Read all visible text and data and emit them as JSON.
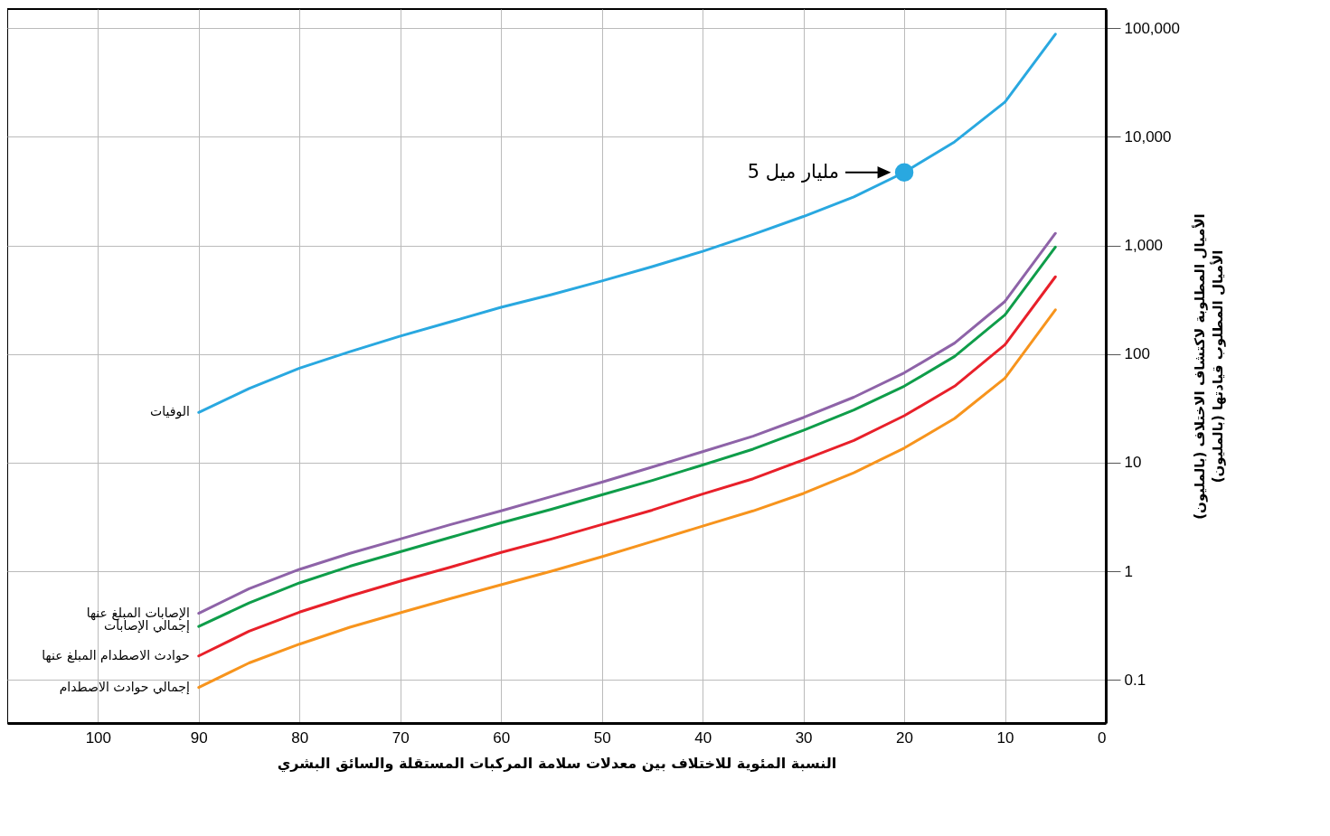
{
  "chart_data": {
    "type": "line",
    "xlabel": "النسبة المئوية للاختلاف بين معدلات سلامة المركبات المستقلة والسائق البشري",
    "ylabel": "الأميال المطلوبة لاكتشاف الاختلاف (بالمليون)\nالأميال المطلوب قيادتها (بالمليون)",
    "x": [
      90,
      85,
      80,
      75,
      70,
      65,
      60,
      55,
      50,
      45,
      40,
      35,
      30,
      25,
      20,
      15,
      10,
      5
    ],
    "series": [
      {
        "name": "الوفيات",
        "color": "#29a8e0",
        "values": [
          29,
          48,
          74,
          105,
          146,
          198,
          269,
          352,
          470,
          638,
          881,
          1260,
          1845,
          2790,
          4700,
          8980,
          20900,
          88100
        ]
      },
      {
        "name": "الإصابات المبلغ عنها",
        "color": "#8e63a8",
        "values": [
          0.41,
          0.69,
          1.04,
          1.46,
          1.98,
          2.69,
          3.59,
          4.87,
          6.6,
          9.1,
          12.6,
          17.5,
          26,
          40,
          67,
          126,
          305,
          1290
        ]
      },
      {
        "name": "إجمالي الإصابات",
        "color": "#0f9d4a",
        "values": [
          0.31,
          0.51,
          0.78,
          1.11,
          1.51,
          2.05,
          2.79,
          3.72,
          5.05,
          6.85,
          9.5,
          13.3,
          19.8,
          30.5,
          50.5,
          95,
          229,
          964
        ]
      },
      {
        "name": "حوادث الاصطدام المبلغ عنها",
        "color": "#e8202a",
        "values": [
          0.166,
          0.28,
          0.42,
          0.59,
          0.81,
          1.09,
          1.49,
          1.98,
          2.69,
          3.65,
          5.14,
          7.1,
          10.6,
          16,
          27,
          50.5,
          122,
          514
        ]
      },
      {
        "name": "إجمالي حوادث الاصطدام",
        "color": "#f7941d",
        "values": [
          0.085,
          0.143,
          0.213,
          0.305,
          0.414,
          0.56,
          0.75,
          1,
          1.36,
          1.88,
          2.6,
          3.59,
          5.2,
          8.06,
          13.6,
          25.5,
          60,
          255
        ]
      },
      {
        "type": "scatter",
        "color": "#29a8e0",
        "x": [
          20
        ],
        "values": [
          4700
        ]
      }
    ],
    "annotations": [
      "5 مليار ميل"
    ],
    "xlim": [
      109,
      0
    ],
    "xticks": [
      100,
      90,
      80,
      70,
      60,
      50,
      40,
      30,
      20,
      10,
      0
    ],
    "ylim": [
      0.04,
      150000
    ],
    "yticks": [
      0.1,
      1,
      10,
      100,
      {
        "value": 1000,
        "label": "1,000"
      },
      {
        "value": 10000,
        "label": "10,000"
      },
      {
        "value": 100000,
        "label": "100,000"
      }
    ],
    "log": true,
    "grid": true,
    "legend": false
  }
}
